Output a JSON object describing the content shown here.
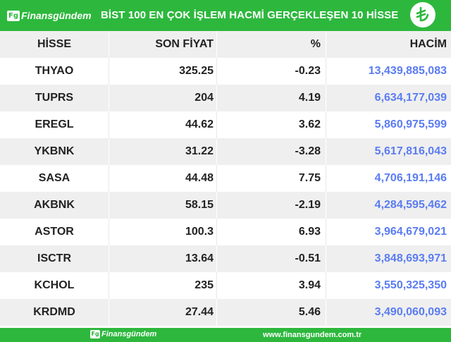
{
  "header": {
    "logo_badge": "Fg",
    "logo_text": "Finansgündem",
    "title": "BİST 100 EN ÇOK İŞLEM HACMİ GERÇEKLEŞEN 10 HİSSE"
  },
  "columns": [
    "HİSSE",
    "SON FİYAT",
    "%",
    "HACİM"
  ],
  "rows": [
    {
      "hisse": "THYAO",
      "son_fiyat": "325.25",
      "yuzde": "-0.23",
      "hacim": "13,439,885,083"
    },
    {
      "hisse": "TUPRS",
      "son_fiyat": "204",
      "yuzde": "4.19",
      "hacim": "6,634,177,039"
    },
    {
      "hisse": "EREGL",
      "son_fiyat": "44.62",
      "yuzde": "3.62",
      "hacim": "5,860,975,599"
    },
    {
      "hisse": "YKBNK",
      "son_fiyat": "31.22",
      "yuzde": "-3.28",
      "hacim": "5,617,816,043"
    },
    {
      "hisse": "SASA",
      "son_fiyat": "44.48",
      "yuzde": "7.75",
      "hacim": "4,706,191,146"
    },
    {
      "hisse": "AKBNK",
      "son_fiyat": "58.15",
      "yuzde": "-2.19",
      "hacim": "4,284,595,462"
    },
    {
      "hisse": "ASTOR",
      "son_fiyat": "100.3",
      "yuzde": "6.93",
      "hacim": "3,964,679,021"
    },
    {
      "hisse": "ISCTR",
      "son_fiyat": "13.64",
      "yuzde": "-0.51",
      "hacim": "3,848,693,971"
    },
    {
      "hisse": "KCHOL",
      "son_fiyat": "235",
      "yuzde": "3.94",
      "hacim": "3,550,325,350"
    },
    {
      "hisse": "KRDMD",
      "son_fiyat": "27.44",
      "yuzde": "5.46",
      "hacim": "3,490,060,093"
    }
  ],
  "footer": {
    "logo_badge": "Fg",
    "logo_text": "Finansgündem",
    "url": "www.finansgundem.com.tr"
  },
  "colors": {
    "brand_green": "#2db83d",
    "volume_blue": "#5b7cf2",
    "stripe_gray": "#efefef"
  },
  "icons": {
    "currency": "turkish-lira-icon"
  }
}
